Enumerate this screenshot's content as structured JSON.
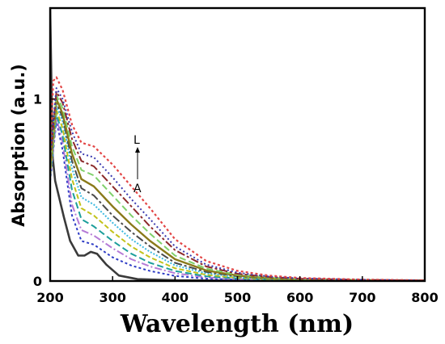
{
  "chart_data": {
    "type": "line",
    "title": "",
    "xlabel": "Wavelength (nm)",
    "ylabel": "Absorption (a.u.)",
    "xlim": [
      200,
      800
    ],
    "ylim": [
      0,
      1.5
    ],
    "xticks": [
      200,
      300,
      400,
      500,
      600,
      700,
      800
    ],
    "yticks": [
      0,
      1
    ],
    "grid": false,
    "legend": "none",
    "annotations": {
      "top": "L",
      "bottom": "A",
      "arrow": "up"
    },
    "series": [
      {
        "color": "#3a3a3a",
        "dash": "solid",
        "width": 2.6,
        "points": [
          [
            200,
            1.5
          ],
          [
            204,
            0.68
          ],
          [
            208,
            0.55
          ],
          [
            215,
            0.45
          ],
          [
            222,
            0.35
          ],
          [
            232,
            0.22
          ],
          [
            245,
            0.14
          ],
          [
            255,
            0.14
          ],
          [
            265,
            0.16
          ],
          [
            275,
            0.15
          ],
          [
            290,
            0.09
          ],
          [
            310,
            0.03
          ],
          [
            340,
            0.01
          ],
          [
            400,
            0.004
          ],
          [
            500,
            0.002
          ],
          [
            800,
            0.0
          ]
        ]
      },
      {
        "color": "#2e3cc6",
        "dash": "3 3",
        "width": 2,
        "points": [
          [
            200,
            0.55
          ],
          [
            210,
            0.88
          ],
          [
            220,
            0.72
          ],
          [
            235,
            0.36
          ],
          [
            250,
            0.22
          ],
          [
            270,
            0.2
          ],
          [
            300,
            0.13
          ],
          [
            330,
            0.085
          ],
          [
            360,
            0.055
          ],
          [
            400,
            0.028
          ],
          [
            450,
            0.013
          ],
          [
            500,
            0.007
          ],
          [
            550,
            0.004
          ],
          [
            600,
            0.003
          ],
          [
            700,
            0.001
          ],
          [
            800,
            0.0
          ]
        ]
      },
      {
        "color": "#b57bd6",
        "dash": "9 3 2 3",
        "width": 2,
        "points": [
          [
            200,
            0.56
          ],
          [
            210,
            0.9
          ],
          [
            220,
            0.76
          ],
          [
            235,
            0.42
          ],
          [
            250,
            0.28
          ],
          [
            270,
            0.25
          ],
          [
            300,
            0.18
          ],
          [
            330,
            0.12
          ],
          [
            360,
            0.08
          ],
          [
            400,
            0.043
          ],
          [
            450,
            0.02
          ],
          [
            500,
            0.011
          ],
          [
            550,
            0.006
          ],
          [
            600,
            0.004
          ],
          [
            700,
            0.002
          ],
          [
            800,
            0.001
          ]
        ]
      },
      {
        "color": "#1c9e9b",
        "dash": "8 4",
        "width": 2,
        "points": [
          [
            200,
            0.57
          ],
          [
            210,
            0.92
          ],
          [
            220,
            0.8
          ],
          [
            235,
            0.5
          ],
          [
            250,
            0.34
          ],
          [
            270,
            0.3
          ],
          [
            300,
            0.22
          ],
          [
            330,
            0.15
          ],
          [
            360,
            0.1
          ],
          [
            400,
            0.055
          ],
          [
            450,
            0.026
          ],
          [
            500,
            0.014
          ],
          [
            550,
            0.008
          ],
          [
            600,
            0.005
          ],
          [
            700,
            0.003
          ],
          [
            800,
            0.001
          ]
        ]
      },
      {
        "color": "#c2c21a",
        "dash": "6 3",
        "width": 2,
        "points": [
          [
            200,
            0.58
          ],
          [
            210,
            0.94
          ],
          [
            220,
            0.84
          ],
          [
            235,
            0.56
          ],
          [
            250,
            0.4
          ],
          [
            270,
            0.36
          ],
          [
            300,
            0.27
          ],
          [
            330,
            0.19
          ],
          [
            360,
            0.13
          ],
          [
            400,
            0.07
          ],
          [
            450,
            0.034
          ],
          [
            500,
            0.018
          ],
          [
            550,
            0.01
          ],
          [
            600,
            0.006
          ],
          [
            700,
            0.003
          ],
          [
            800,
            0.001
          ]
        ]
      },
      {
        "color": "#3cb9e0",
        "dash": "2 2",
        "width": 2,
        "points": [
          [
            200,
            0.6
          ],
          [
            210,
            0.96
          ],
          [
            220,
            0.88
          ],
          [
            235,
            0.62
          ],
          [
            250,
            0.46
          ],
          [
            270,
            0.42
          ],
          [
            300,
            0.32
          ],
          [
            330,
            0.23
          ],
          [
            360,
            0.16
          ],
          [
            400,
            0.086
          ],
          [
            450,
            0.042
          ],
          [
            500,
            0.022
          ],
          [
            550,
            0.012
          ],
          [
            600,
            0.007
          ],
          [
            700,
            0.004
          ],
          [
            800,
            0.002
          ]
        ]
      },
      {
        "color": "#4a4a4a",
        "dash": "10 3 3 3",
        "width": 2,
        "points": [
          [
            200,
            0.61
          ],
          [
            210,
            0.98
          ],
          [
            220,
            0.9
          ],
          [
            235,
            0.66
          ],
          [
            250,
            0.51
          ],
          [
            270,
            0.47
          ],
          [
            300,
            0.36
          ],
          [
            330,
            0.27
          ],
          [
            360,
            0.19
          ],
          [
            400,
            0.1
          ],
          [
            450,
            0.05
          ],
          [
            500,
            0.026
          ],
          [
            550,
            0.014
          ],
          [
            600,
            0.008
          ],
          [
            700,
            0.004
          ],
          [
            800,
            0.002
          ]
        ]
      },
      {
        "color": "#8a7a1a",
        "dash": "solid",
        "width": 2.4,
        "points": [
          [
            200,
            0.62
          ],
          [
            210,
            1.0
          ],
          [
            220,
            0.92
          ],
          [
            235,
            0.7
          ],
          [
            250,
            0.56
          ],
          [
            270,
            0.52
          ],
          [
            300,
            0.41
          ],
          [
            330,
            0.31
          ],
          [
            360,
            0.22
          ],
          [
            400,
            0.12
          ],
          [
            450,
            0.058
          ],
          [
            500,
            0.03
          ],
          [
            550,
            0.016
          ],
          [
            600,
            0.009
          ],
          [
            700,
            0.005
          ],
          [
            800,
            0.002
          ]
        ]
      },
      {
        "color": "#7fd06a",
        "dash": "8 4",
        "width": 2,
        "points": [
          [
            200,
            0.64
          ],
          [
            210,
            1.02
          ],
          [
            220,
            0.95
          ],
          [
            235,
            0.74
          ],
          [
            250,
            0.61
          ],
          [
            270,
            0.58
          ],
          [
            300,
            0.47
          ],
          [
            330,
            0.36
          ],
          [
            360,
            0.26
          ],
          [
            400,
            0.14
          ],
          [
            450,
            0.068
          ],
          [
            500,
            0.035
          ],
          [
            550,
            0.019
          ],
          [
            600,
            0.011
          ],
          [
            700,
            0.005
          ],
          [
            800,
            0.002
          ]
        ]
      },
      {
        "color": "#8b2a2a",
        "dash": "10 3 3 3",
        "width": 2,
        "points": [
          [
            200,
            0.66
          ],
          [
            210,
            1.04
          ],
          [
            220,
            0.98
          ],
          [
            235,
            0.78
          ],
          [
            250,
            0.66
          ],
          [
            270,
            0.63
          ],
          [
            300,
            0.52
          ],
          [
            330,
            0.41
          ],
          [
            360,
            0.3
          ],
          [
            400,
            0.17
          ],
          [
            450,
            0.08
          ],
          [
            500,
            0.04
          ],
          [
            550,
            0.022
          ],
          [
            600,
            0.013
          ],
          [
            700,
            0.006
          ],
          [
            800,
            0.003
          ]
        ]
      },
      {
        "color": "#3b3bb0",
        "dash": "2 3",
        "width": 2,
        "points": [
          [
            200,
            0.68
          ],
          [
            210,
            1.06
          ],
          [
            220,
            1.0
          ],
          [
            235,
            0.82
          ],
          [
            250,
            0.7
          ],
          [
            270,
            0.68
          ],
          [
            300,
            0.57
          ],
          [
            330,
            0.45
          ],
          [
            360,
            0.34
          ],
          [
            400,
            0.19
          ],
          [
            450,
            0.09
          ],
          [
            500,
            0.046
          ],
          [
            550,
            0.025
          ],
          [
            600,
            0.014
          ],
          [
            700,
            0.007
          ],
          [
            800,
            0.003
          ]
        ]
      },
      {
        "color": "#e24545",
        "dash": "3 3",
        "width": 2.2,
        "points": [
          [
            200,
            0.7
          ],
          [
            205,
            1.1
          ],
          [
            210,
            1.12
          ],
          [
            220,
            1.05
          ],
          [
            235,
            0.86
          ],
          [
            250,
            0.76
          ],
          [
            270,
            0.74
          ],
          [
            300,
            0.64
          ],
          [
            330,
            0.52
          ],
          [
            360,
            0.4
          ],
          [
            400,
            0.23
          ],
          [
            450,
            0.11
          ],
          [
            500,
            0.056
          ],
          [
            550,
            0.03
          ],
          [
            600,
            0.017
          ],
          [
            700,
            0.008
          ],
          [
            800,
            0.004
          ]
        ]
      }
    ]
  }
}
